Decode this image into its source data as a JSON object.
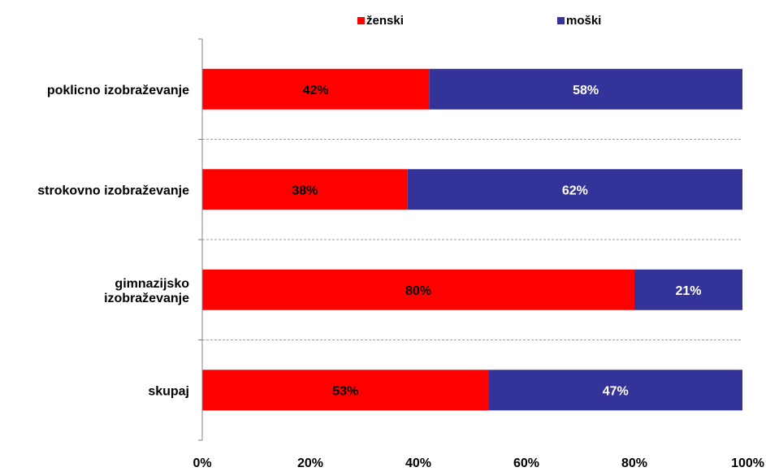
{
  "chart_data": {
    "type": "bar",
    "orientation": "horizontal",
    "stacked": true,
    "categories": [
      [
        "poklicno izobraževanje"
      ],
      [
        "strokovno izobraževanje"
      ],
      [
        "gimnazijsko",
        "izobraževanje"
      ],
      [
        "skupaj"
      ]
    ],
    "series": [
      {
        "name": "ženski",
        "color": "#ff0000",
        "values": [
          42,
          38,
          80,
          53
        ],
        "labels": [
          "42%",
          "38%",
          "80%",
          "53%"
        ],
        "label_color": "#000000"
      },
      {
        "name": "moški",
        "color": "#333399",
        "values": [
          58,
          62,
          21,
          47
        ],
        "labels": [
          "58%",
          "62%",
          "21%",
          "47%"
        ],
        "label_color": "#ffffff"
      }
    ],
    "xlim": [
      0,
      100
    ],
    "x_ticks": [
      "0%",
      "20%",
      "40%",
      "60%",
      "80%",
      "100%"
    ],
    "title": "",
    "xlabel": "",
    "ylabel": "",
    "legend_position": "top",
    "grid": false,
    "category_separators": "dashed"
  }
}
